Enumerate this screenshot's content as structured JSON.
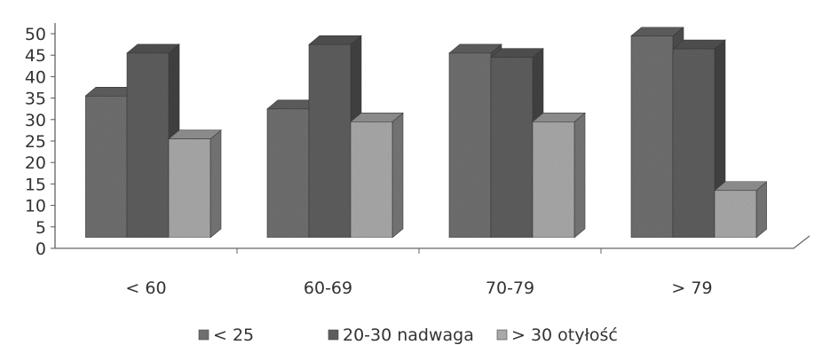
{
  "chart_data": {
    "type": "bar",
    "title": "",
    "xlabel": "",
    "ylabel": "",
    "ylim": [
      0,
      50
    ],
    "ytick_step": 5,
    "ytick_labels": [
      "0",
      "5",
      "10",
      "15",
      "20",
      "25",
      "30",
      "35",
      "40",
      "45",
      "50"
    ],
    "categories": [
      "< 60",
      "60-69",
      "70-79",
      "> 79"
    ],
    "series": [
      {
        "name": "< 25",
        "values": [
          33,
          30,
          43,
          47
        ],
        "color": "#6f6f6f"
      },
      {
        "name": "20-30 nadwaga",
        "values": [
          43,
          45,
          42,
          44
        ],
        "color": "#5e5e5e"
      },
      {
        "name": "> 30 otyłość",
        "values": [
          23,
          27,
          27,
          11
        ],
        "color": "#a9a9a9"
      }
    ],
    "legend_position": "bottom",
    "grid": false,
    "three_d": true
  }
}
